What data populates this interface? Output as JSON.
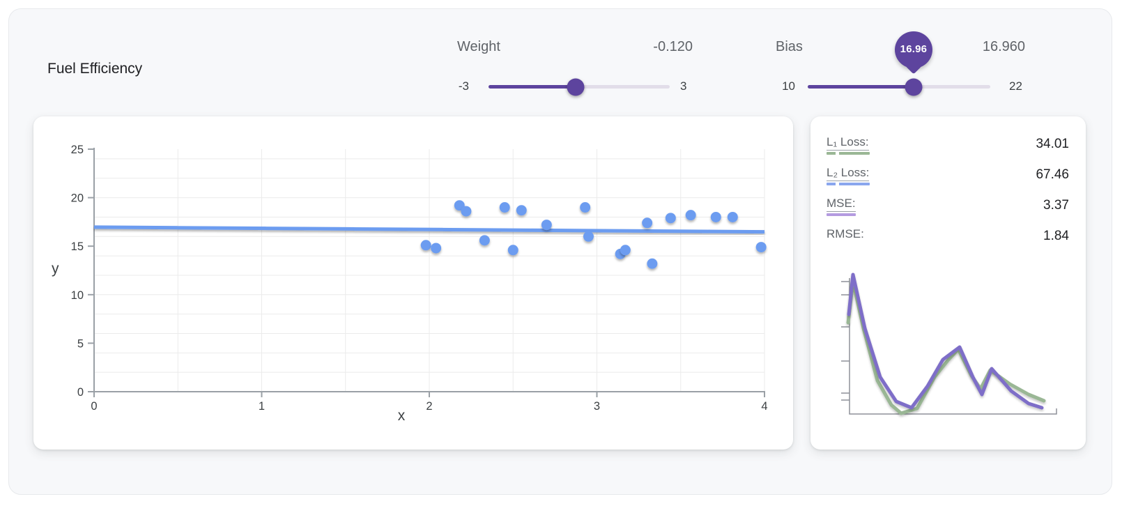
{
  "page": {
    "title": "Fuel Efficiency"
  },
  "sliders": {
    "weight": {
      "label": "Weight",
      "value": "-0.120",
      "min": "-3",
      "max": "3"
    },
    "bias": {
      "label": "Bias",
      "value": "16.960",
      "min": "10",
      "max": "22",
      "tooltip": "16.96"
    }
  },
  "loss_panel": {
    "rows": [
      {
        "label": "L₁ Loss:",
        "value": "34.01",
        "swatch_color": "#9ab795",
        "swatch_style": "dashed"
      },
      {
        "label": "L₂ Loss:",
        "value": "67.46",
        "swatch_color": "#8aa6ee",
        "swatch_style": "dashed"
      },
      {
        "label": "MSE:",
        "value": "3.37",
        "swatch_color": "#b49be0",
        "swatch_style": "solid"
      },
      {
        "label": "RMSE:",
        "value": "1.84",
        "swatch_color": "",
        "swatch_style": "none"
      }
    ]
  },
  "chart_data": [
    {
      "type": "scatter",
      "title": "Fuel Efficiency",
      "xlabel": "x",
      "ylabel": "y",
      "xlim": [
        0,
        4
      ],
      "ylim": [
        0,
        25
      ],
      "x_ticks": [
        0,
        1,
        2,
        3,
        4
      ],
      "y_ticks": [
        0,
        5,
        10,
        15,
        20,
        25
      ],
      "grid": {
        "x_step": 0.5,
        "y_step": 2
      },
      "points": [
        [
          1.98,
          15.1
        ],
        [
          2.04,
          14.8
        ],
        [
          2.18,
          19.2
        ],
        [
          2.22,
          18.6
        ],
        [
          2.33,
          15.6
        ],
        [
          2.45,
          19.0
        ],
        [
          2.5,
          14.6
        ],
        [
          2.55,
          18.7
        ],
        [
          2.7,
          17.2
        ],
        [
          2.93,
          19.0
        ],
        [
          2.95,
          16.0
        ],
        [
          3.14,
          14.2
        ],
        [
          3.17,
          14.6
        ],
        [
          3.3,
          17.4
        ],
        [
          3.33,
          13.2
        ],
        [
          3.44,
          17.9
        ],
        [
          3.56,
          18.2
        ],
        [
          3.71,
          18.0
        ],
        [
          3.81,
          18.0
        ],
        [
          3.98,
          14.9
        ]
      ],
      "regression_line": {
        "weight": -0.12,
        "bias": 16.96
      },
      "residuals_shown": true,
      "point_color": "#6c9cf0",
      "line_color": "#6c9cf0",
      "residual_color": "#da8448",
      "axis_color": "#9aa0a6",
      "grid_color": "#ebebeb",
      "tick_text_color": "#3c4043"
    },
    {
      "type": "line",
      "title": "loss-history",
      "legend_position": "none",
      "axes_labeled": false,
      "coordinate_space": "pixels within loss card",
      "series": [
        {
          "name": "L₁ Loss",
          "color": "#9ab795",
          "points": [
            [
              54,
              296
            ],
            [
              61,
              237
            ],
            [
              76,
              304
            ],
            [
              96,
              379
            ],
            [
              116,
              414
            ],
            [
              130,
              426
            ],
            [
              153,
              419
            ],
            [
              178,
              374
            ],
            [
              198,
              349
            ],
            [
              212,
              334
            ],
            [
              231,
              372
            ],
            [
              244,
              391
            ],
            [
              258,
              364
            ],
            [
              286,
              384
            ],
            [
              313,
              399
            ],
            [
              335,
              408
            ]
          ]
        },
        {
          "name": "MSE",
          "color": "#7e6ec8",
          "points": [
            [
              55,
              284
            ],
            [
              61,
              227
            ],
            [
              78,
              304
            ],
            [
              100,
              374
            ],
            [
              123,
              409
            ],
            [
              145,
              418
            ],
            [
              168,
              387
            ],
            [
              190,
              349
            ],
            [
              214,
              331
            ],
            [
              233,
              374
            ],
            [
              246,
              399
            ],
            [
              260,
              362
            ],
            [
              288,
              394
            ],
            [
              313,
              412
            ],
            [
              332,
              418
            ]
          ]
        }
      ]
    }
  ],
  "colors": {
    "accent_purple": "#5d449e",
    "slider_track": "#e2dde9",
    "scatter_blue": "#6c9cf0",
    "residual_orange": "#da8448",
    "l1_green": "#9ab795",
    "l2_blue": "#8aa6ee",
    "mse_purple": "#b49be0"
  }
}
